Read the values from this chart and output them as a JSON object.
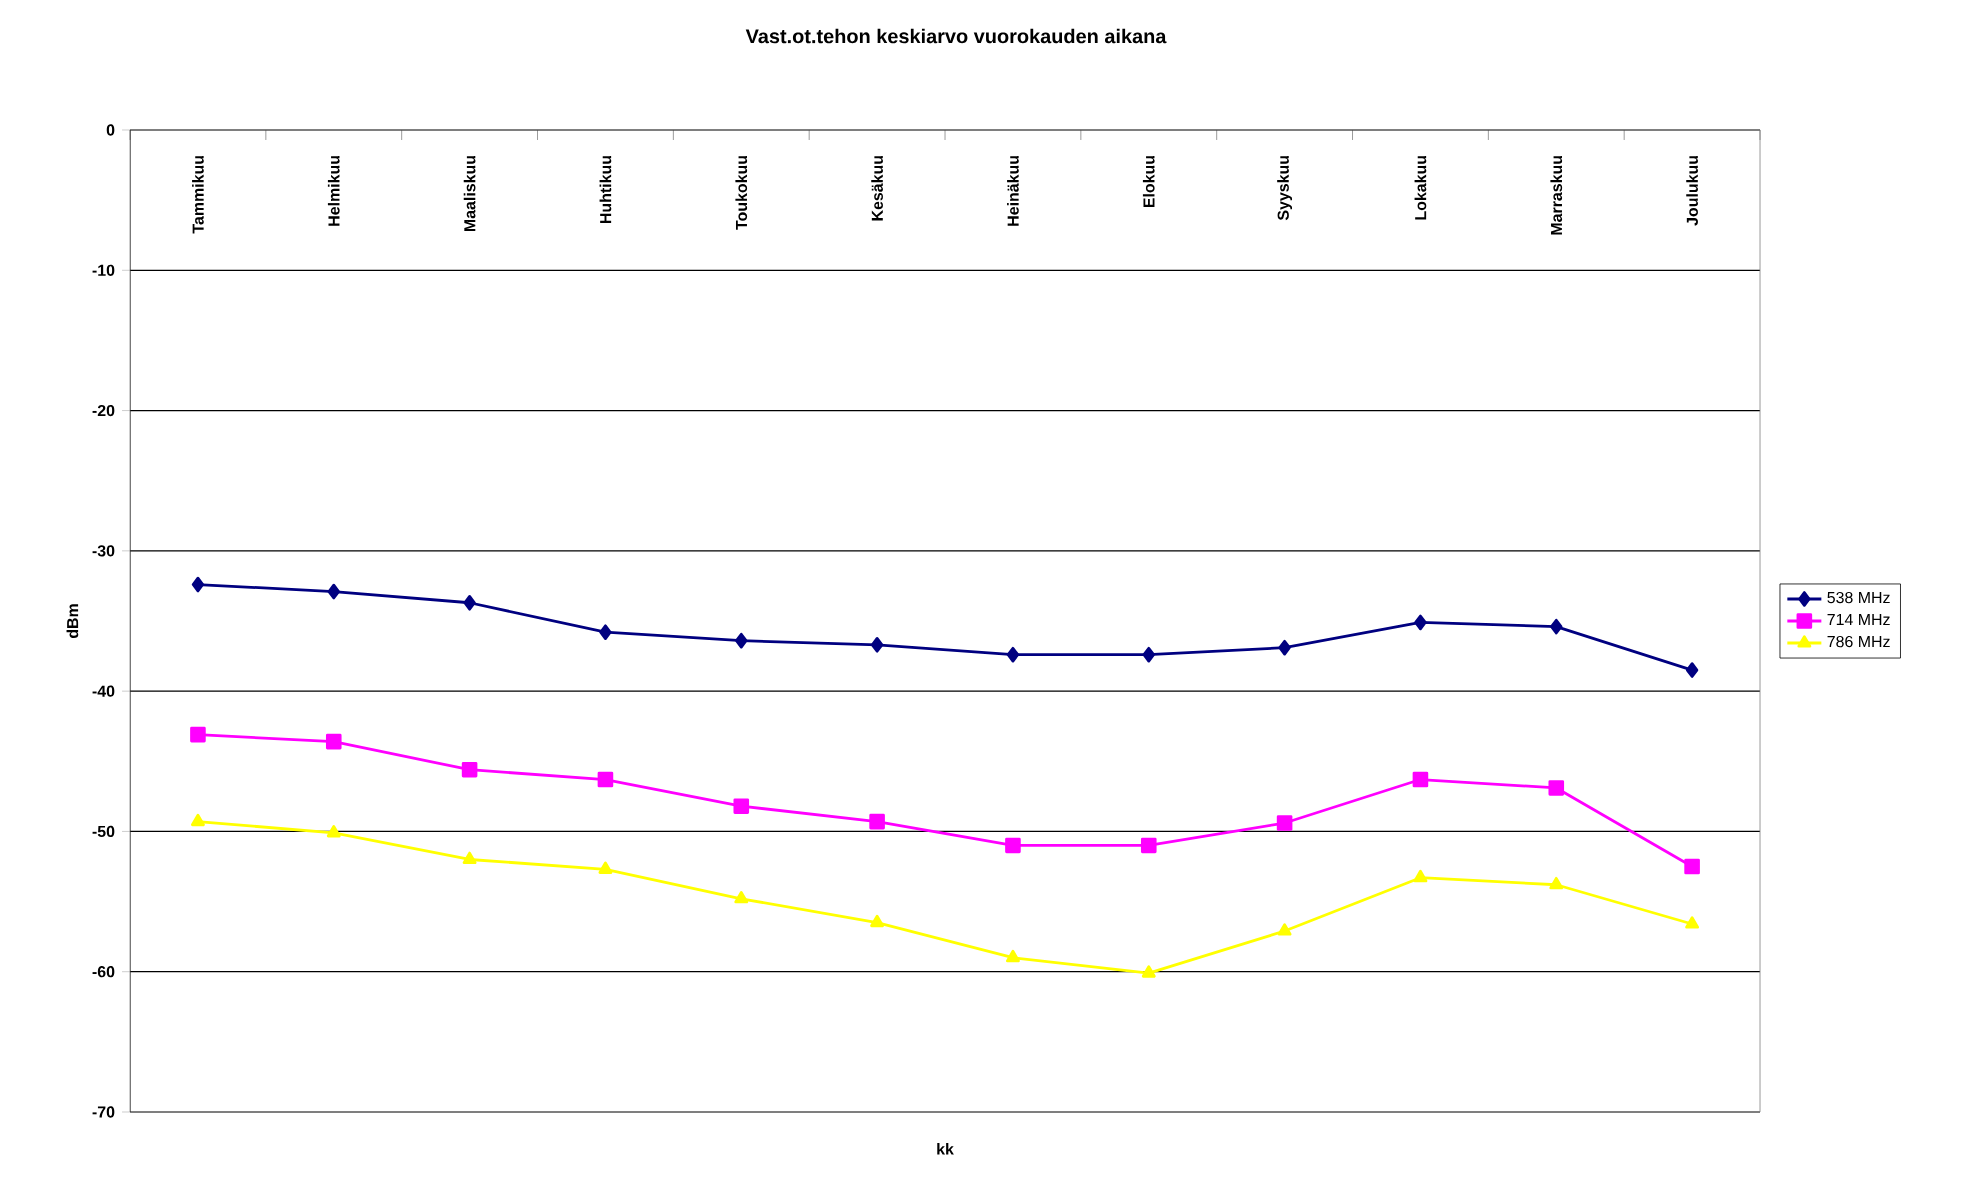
{
  "chart_data": {
    "type": "line",
    "title": "Vast.ot.tehon keskiarvo vuorokauden aikana",
    "xlabel": "kk",
    "ylabel": "dBm",
    "categories": [
      "Tammikuu",
      "Helmikuu",
      "Maaliskuu",
      "Huhtikuu",
      "Toukokuu",
      "Kesäkuu",
      "Heinäkuu",
      "Elokuu",
      "Syyskuu",
      "Lokakuu",
      "Marraskuu",
      "Joulukuu"
    ],
    "series": [
      {
        "name": "538 MHz",
        "color": "#000080",
        "marker": "diamond",
        "values": [
          -32.4,
          -32.9,
          -33.7,
          -35.8,
          -36.4,
          -36.7,
          -37.4,
          -37.4,
          -36.9,
          -35.1,
          -35.4,
          -38.5
        ]
      },
      {
        "name": "714 MHz",
        "color": "#ff00ff",
        "marker": "square",
        "values": [
          -43.1,
          -43.6,
          -45.6,
          -46.3,
          -48.2,
          -49.3,
          -51.0,
          -51.0,
          -49.4,
          -46.3,
          -46.9,
          -52.5
        ]
      },
      {
        "name": "786 MHz",
        "color": "#ffff00",
        "marker": "triangle",
        "values": [
          -49.3,
          -50.1,
          -52.0,
          -52.7,
          -54.8,
          -56.5,
          -59.0,
          -60.1,
          -57.1,
          -53.3,
          -53.8,
          -56.6
        ]
      }
    ],
    "ylim": [
      -70,
      0
    ],
    "yticks": [
      -70,
      -60,
      -50,
      -40,
      -30,
      -20,
      -10,
      0
    ],
    "grid": "y",
    "legend": "right",
    "line_style": "solid"
  }
}
